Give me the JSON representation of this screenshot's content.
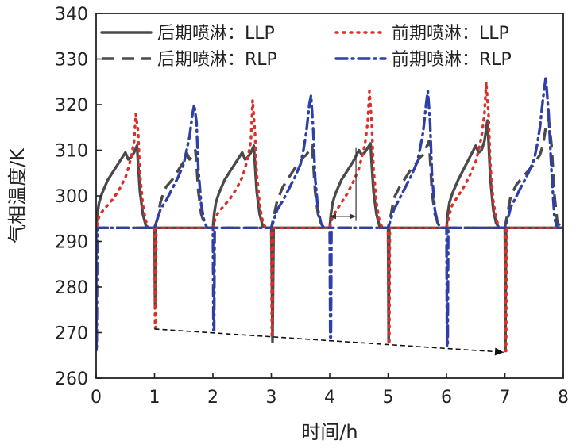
{
  "chart_data": {
    "type": "line",
    "xlabel": "时间/h",
    "ylabel": "气相温度/K",
    "xlim": [
      0,
      8
    ],
    "ylim": [
      260,
      340
    ],
    "x_ticks": [
      "0",
      "1",
      "2",
      "3",
      "4",
      "5",
      "6",
      "7",
      "8"
    ],
    "y_ticks": [
      "260",
      "270",
      "280",
      "290",
      "300",
      "310",
      "320",
      "330",
      "340"
    ],
    "grid": false,
    "legend_position": "top",
    "series": [
      {
        "name": "后期喷淋：LLP",
        "color": "#4a4a4a",
        "dash": "solid",
        "x": [
          0,
          0.02,
          0.05,
          0.1,
          0.15,
          0.2,
          0.3,
          0.4,
          0.5,
          0.55,
          0.6,
          0.65,
          0.7,
          0.72,
          0.75,
          0.8,
          0.85,
          0.9,
          1.0,
          1.01,
          1.02,
          1.05,
          1.1,
          1.3,
          1.5,
          1.7,
          1.9,
          2.0,
          2.02,
          2.05,
          2.1,
          2.2,
          2.3,
          2.4,
          2.5,
          2.55,
          2.6,
          2.65,
          2.7,
          2.72,
          2.75,
          2.8,
          2.85,
          2.9,
          3.0,
          3.02,
          3.04,
          3.1,
          3.3,
          3.5,
          3.7,
          3.9,
          4.0,
          4.02,
          4.05,
          4.1,
          4.2,
          4.3,
          4.4,
          4.5,
          4.55,
          4.6,
          4.65,
          4.7,
          4.72,
          4.75,
          4.8,
          4.85,
          4.9,
          4.99,
          5.0,
          5.01,
          5.02,
          5.05,
          5.1,
          5.3,
          5.5,
          5.7,
          5.9,
          6.0,
          6.02,
          6.05,
          6.1,
          6.2,
          6.3,
          6.4,
          6.5,
          6.55,
          6.6,
          6.65,
          6.7,
          6.72,
          6.75,
          6.8,
          6.85,
          6.9,
          6.99,
          7.0,
          7.01,
          7.02,
          7.05,
          7.1,
          7.5,
          8.0
        ],
        "y": [
          292.5,
          296,
          298.5,
          300.5,
          302,
          303.5,
          305.5,
          307.5,
          309.5,
          308,
          308.5,
          309.5,
          311,
          307,
          301,
          296,
          293.5,
          293,
          293,
          276,
          293,
          293,
          293,
          293,
          293,
          293,
          293,
          293,
          296,
          298.5,
          300.5,
          303.5,
          305.5,
          307.5,
          309.5,
          308,
          308.5,
          309.5,
          311,
          307,
          301,
          296,
          293.5,
          293,
          293,
          268,
          293,
          293,
          293,
          293,
          293,
          293,
          293,
          296,
          298.5,
          300.5,
          303.5,
          305.5,
          307.5,
          310,
          309,
          309.5,
          310.5,
          311.5,
          307,
          301,
          296,
          293.5,
          293,
          293,
          293,
          268,
          293,
          293,
          293,
          293,
          293,
          293,
          293,
          293,
          296,
          298.5,
          300.5,
          303.5,
          306,
          308.5,
          311,
          309.5,
          310,
          312,
          316.5,
          312,
          304,
          297,
          294,
          293,
          293,
          293,
          266,
          293,
          293,
          293,
          293,
          293
        ]
      },
      {
        "name": "前期喷淋：LLP",
        "color": "#d9302a",
        "dash": "dotted",
        "x": [
          0,
          0.02,
          0.05,
          0.1,
          0.2,
          0.3,
          0.4,
          0.5,
          0.55,
          0.6,
          0.65,
          0.68,
          0.72,
          0.75,
          0.8,
          0.85,
          0.9,
          0.99,
          1.0,
          1.01,
          1.02,
          1.03,
          1.1,
          1.5,
          1.9,
          2.0,
          2.02,
          2.05,
          2.1,
          2.2,
          2.3,
          2.4,
          2.5,
          2.55,
          2.6,
          2.65,
          2.68,
          2.72,
          2.75,
          2.8,
          2.85,
          2.9,
          2.99,
          3.0,
          3.01,
          3.02,
          3.03,
          3.1,
          3.5,
          3.9,
          4.0,
          4.02,
          4.05,
          4.1,
          4.2,
          4.3,
          4.4,
          4.5,
          4.55,
          4.6,
          4.65,
          4.68,
          4.72,
          4.75,
          4.8,
          4.85,
          4.9,
          4.99,
          5.0,
          5.01,
          5.02,
          5.03,
          5.1,
          5.5,
          5.9,
          6.0,
          6.02,
          6.05,
          6.1,
          6.2,
          6.3,
          6.4,
          6.5,
          6.55,
          6.6,
          6.65,
          6.68,
          6.72,
          6.75,
          6.8,
          6.85,
          6.9,
          6.99,
          7.0,
          7.01,
          7.02,
          7.03,
          7.1,
          7.5,
          8.0
        ],
        "y": [
          292,
          294,
          295.5,
          296.5,
          298,
          299.5,
          301.5,
          304,
          306,
          308.5,
          312,
          318,
          314,
          305,
          298,
          294.5,
          293,
          293,
          293,
          271,
          271,
          293,
          293,
          293,
          293,
          293,
          294,
          295.5,
          296.5,
          298,
          299.5,
          301.5,
          304,
          306,
          308.5,
          312,
          321,
          314,
          305,
          298,
          294.5,
          293,
          293,
          293,
          269,
          269,
          293,
          293,
          293,
          293,
          293,
          294,
          295.5,
          296.5,
          298.5,
          300.5,
          303,
          306,
          308.5,
          311,
          316,
          323,
          316,
          306,
          298.5,
          294.5,
          293,
          293,
          293,
          267.5,
          267.5,
          293,
          293,
          293,
          293,
          293,
          294,
          296,
          298,
          300,
          302,
          304.5,
          307.5,
          310,
          313,
          318,
          325,
          318,
          307,
          299,
          295,
          293,
          293,
          293,
          266,
          266,
          293,
          293,
          293,
          293
        ]
      },
      {
        "name": "后期喷淋：RLP",
        "color": "#4a4a4a",
        "dash": "dashed",
        "x": [
          0,
          1.0,
          1.05,
          1.1,
          1.15,
          1.2,
          1.3,
          1.4,
          1.5,
          1.55,
          1.6,
          1.65,
          1.7,
          1.72,
          1.75,
          1.8,
          1.85,
          1.9,
          2.0,
          3.0,
          3.05,
          3.1,
          3.2,
          3.3,
          3.4,
          3.5,
          3.55,
          3.6,
          3.65,
          3.7,
          3.72,
          3.75,
          3.8,
          3.85,
          3.9,
          4.0,
          5.0,
          5.05,
          5.1,
          5.2,
          5.3,
          5.4,
          5.5,
          5.55,
          5.6,
          5.65,
          5.7,
          5.72,
          5.75,
          5.8,
          5.85,
          5.9,
          6.0,
          7.0,
          7.05,
          7.1,
          7.2,
          7.3,
          7.4,
          7.5,
          7.55,
          7.6,
          7.65,
          7.7,
          7.75,
          7.8,
          7.85,
          7.9,
          8.0
        ],
        "y": [
          293,
          293,
          295,
          298.5,
          300.5,
          302,
          303.5,
          305.5,
          307.5,
          309.5,
          308,
          308.5,
          310,
          307,
          301,
          296,
          294,
          293,
          293,
          293,
          296,
          299,
          302,
          304,
          306,
          307.5,
          308.5,
          309,
          310,
          311,
          307,
          301,
          296,
          294,
          293,
          293,
          293,
          296,
          299.5,
          302,
          304,
          306,
          307.5,
          308.5,
          309,
          310.5,
          312,
          308,
          301,
          296,
          294,
          293,
          293,
          293,
          296.5,
          300,
          302.5,
          304,
          305.5,
          307,
          308,
          309,
          311,
          315,
          317,
          311,
          300,
          294,
          293
        ]
      },
      {
        "name": "前期喷淋：RLP",
        "color": "#2f3fa8",
        "dash": "dashdot",
        "x": [
          0,
          0.005,
          0.01,
          0.02,
          0.05,
          1.0,
          1.05,
          1.1,
          1.2,
          1.3,
          1.4,
          1.5,
          1.55,
          1.6,
          1.65,
          1.68,
          1.72,
          1.75,
          1.8,
          1.85,
          1.9,
          1.99,
          2.0,
          2.01,
          2.02,
          2.03,
          2.1,
          3.0,
          3.05,
          3.1,
          3.2,
          3.3,
          3.4,
          3.5,
          3.55,
          3.6,
          3.65,
          3.68,
          3.72,
          3.75,
          3.8,
          3.85,
          3.9,
          3.99,
          4.0,
          4.01,
          4.02,
          4.03,
          4.1,
          5.0,
          5.05,
          5.1,
          5.2,
          5.3,
          5.4,
          5.5,
          5.55,
          5.6,
          5.65,
          5.68,
          5.72,
          5.75,
          5.8,
          5.85,
          5.9,
          5.99,
          6.0,
          6.01,
          6.02,
          6.03,
          6.1,
          7.0,
          7.05,
          7.1,
          7.2,
          7.3,
          7.4,
          7.5,
          7.55,
          7.6,
          7.65,
          7.7,
          7.75,
          7.8,
          7.85,
          7.9,
          8.0
        ],
        "y": [
          293,
          266,
          266,
          293,
          293,
          293,
          295,
          297,
          299,
          301.5,
          304,
          307,
          310,
          313,
          318,
          320,
          316,
          306,
          298,
          294.5,
          293,
          293,
          293,
          270.5,
          270.5,
          293,
          293,
          293,
          295,
          297,
          299,
          301.5,
          304,
          307,
          310,
          314,
          320,
          322,
          314,
          304,
          297,
          294,
          293,
          293,
          293,
          269,
          269,
          293,
          293,
          293,
          295,
          297,
          299.5,
          302,
          304.5,
          307.5,
          310.5,
          314,
          320,
          323,
          316,
          305,
          297,
          294,
          293,
          293,
          293,
          267,
          267,
          293,
          293,
          293,
          295,
          297.5,
          300,
          302.5,
          305,
          308,
          311,
          315,
          321,
          326,
          318,
          305,
          295,
          293,
          293
        ]
      }
    ]
  }
}
